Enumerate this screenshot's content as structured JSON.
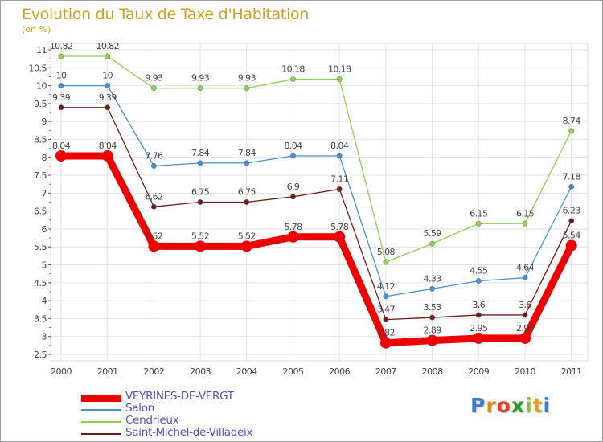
{
  "chart_data": {
    "type": "line",
    "title": "Evolution du Taux de Taxe d'Habitation",
    "subtitle": "(en %)",
    "x": [
      "2000",
      "2001",
      "2002",
      "2003",
      "2004",
      "2005",
      "2006",
      "2007",
      "2008",
      "2009",
      "2010",
      "2011"
    ],
    "yticks": [
      "2.5",
      "3",
      "3.5",
      "4",
      "4.5",
      "5",
      "5.5",
      "6",
      "6.5",
      "7",
      "7.5",
      "8",
      "8.5",
      "9",
      "9.5",
      "10",
      "10.5",
      "11"
    ],
    "ylim": [
      2.5,
      11
    ],
    "grid": true,
    "legend_position": "bottom-left",
    "series": [
      {
        "name": "Cendrieux",
        "color": "#90d050",
        "values": [
          10.82,
          10.82,
          9.93,
          9.93,
          9.93,
          10.18,
          10.18,
          5.08,
          5.59,
          6.15,
          6.15,
          8.74
        ],
        "labels": [
          "10.82",
          "10.82",
          "9.93",
          "9.93",
          "9.93",
          "10.18",
          "10.18",
          "5.08",
          "5.59",
          "6.15",
          "6.15",
          "8.74"
        ]
      },
      {
        "name": "Salon",
        "color": "#4a8fd0",
        "values": [
          10,
          10,
          7.76,
          7.84,
          7.84,
          8.04,
          8.04,
          4.12,
          4.33,
          4.55,
          4.64,
          7.18
        ],
        "labels": [
          "10",
          "10",
          "7.76",
          "7.84",
          "7.84",
          "8.04",
          "8.04",
          "4.12",
          "4.33",
          "4.55",
          "4.64",
          "7.18"
        ]
      },
      {
        "name": "Saint-Michel-de-Villadeix",
        "color": "#6e1c1c",
        "values": [
          9.39,
          9.39,
          6.62,
          6.75,
          6.75,
          6.9,
          7.11,
          3.47,
          3.53,
          3.6,
          3.6,
          6.23
        ],
        "labels": [
          "9.39",
          "9.39",
          "6.62",
          "6.75",
          "6.75",
          "6.9",
          "7.11",
          "3.47",
          "3.53",
          "3.6",
          "3.6",
          "6.23"
        ]
      },
      {
        "name": "VEYRINES-DE-VERGT",
        "color": "#ee0000",
        "values": [
          8.04,
          8.04,
          5.52,
          5.52,
          5.52,
          5.78,
          5.78,
          2.82,
          2.89,
          2.95,
          2.95,
          5.54
        ],
        "labels": [
          "8.04",
          "8.04",
          "5.52",
          "5.52",
          "5.52",
          "5.78",
          "5.78",
          "2.82",
          "2.89",
          "2.95",
          "2.95",
          "5.54"
        ]
      }
    ]
  },
  "legend": {
    "items": [
      {
        "name": "VEYRINES-DE-VERGT",
        "color": "#ee0000"
      },
      {
        "name": "Salon",
        "color": "#4a8fd0"
      },
      {
        "name": "Cendrieux",
        "color": "#90d050"
      },
      {
        "name": "Saint-Michel-de-Villadeix",
        "color": "#6e1c1c"
      }
    ]
  },
  "logo": {
    "letters": [
      "P",
      "r",
      "o",
      "x",
      "i",
      "t",
      "i"
    ],
    "colors": [
      "#3a7fd0",
      "#e88a10",
      "#e84020",
      "#2e9a2e",
      "#8ac040",
      "#e8a010",
      "#3a7fd0"
    ]
  }
}
